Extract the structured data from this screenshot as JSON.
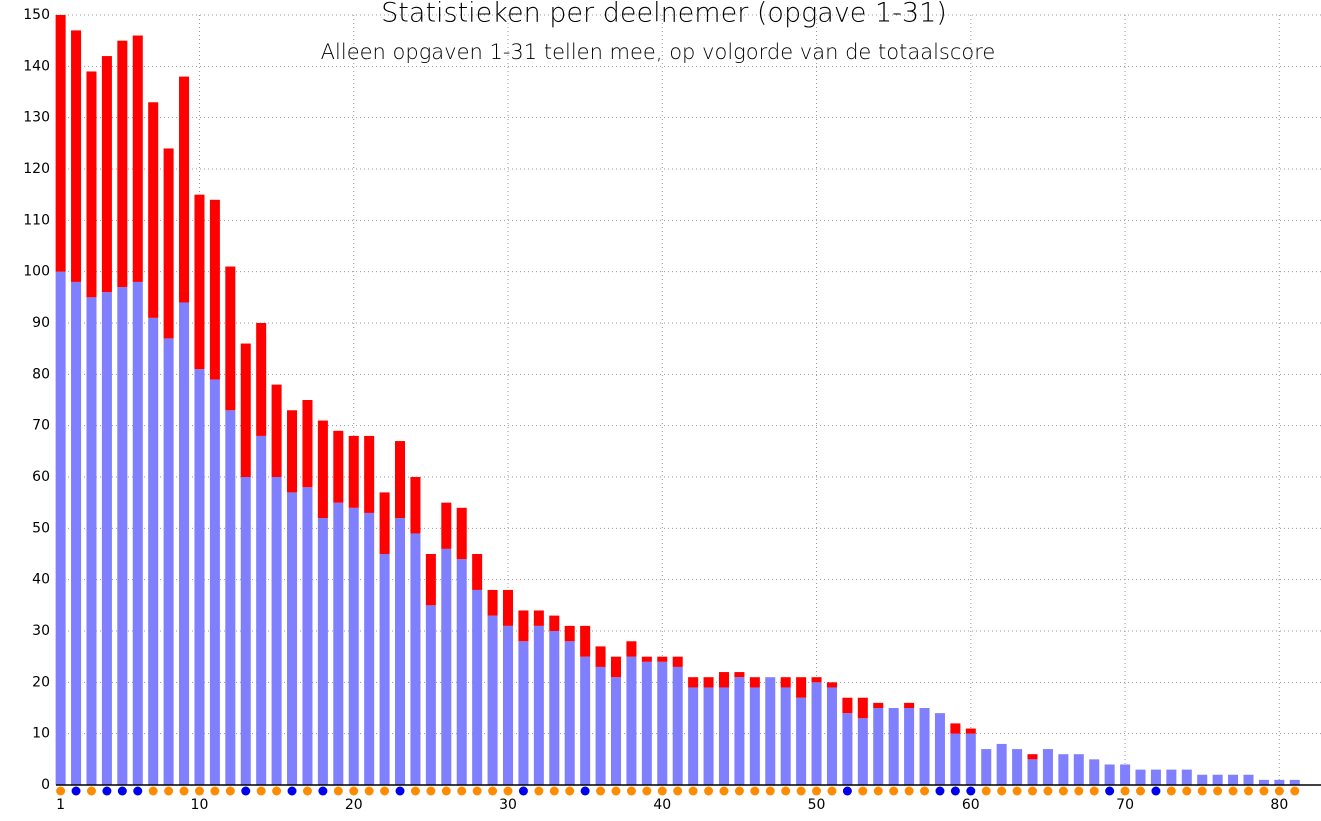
{
  "chart_data": {
    "type": "stacked_bar",
    "title": "Statistieken per deelnemer (opgave 1-31)",
    "subtitle": "Alleen opgaven 1-31 tellen mee, op volgorde van de totaalscore",
    "x": [
      1,
      2,
      3,
      4,
      5,
      6,
      7,
      8,
      9,
      10,
      11,
      12,
      13,
      14,
      15,
      16,
      17,
      18,
      19,
      20,
      21,
      22,
      23,
      24,
      25,
      26,
      27,
      28,
      29,
      30,
      31,
      32,
      33,
      34,
      35,
      36,
      37,
      38,
      39,
      40,
      41,
      42,
      43,
      44,
      45,
      46,
      47,
      48,
      49,
      50,
      51,
      52,
      53,
      54,
      55,
      56,
      57,
      58,
      59,
      60,
      61,
      62,
      63,
      64,
      65,
      66,
      67,
      68,
      69,
      70,
      71,
      72,
      73,
      74,
      75,
      76,
      77,
      78,
      79,
      80,
      81
    ],
    "series": [
      {
        "color": "#8080ff",
        "values": [
          100,
          98,
          95,
          96,
          97,
          98,
          91,
          87,
          94,
          81,
          79,
          73,
          60,
          68,
          60,
          57,
          58,
          52,
          55,
          54,
          53,
          45,
          52,
          49,
          35,
          46,
          44,
          38,
          33,
          31,
          28,
          31,
          30,
          28,
          25,
          23,
          21,
          25,
          24,
          24,
          23,
          19,
          19,
          19,
          21,
          19,
          21,
          19,
          17,
          20,
          19,
          14,
          13,
          15,
          15,
          15,
          15,
          14,
          10,
          10,
          7,
          8,
          7,
          5,
          7,
          6,
          6,
          5,
          4,
          4,
          3,
          3,
          3,
          3,
          2,
          2,
          2,
          2,
          1,
          1,
          1
        ]
      },
      {
        "color": "#ff0000",
        "values": [
          50,
          49,
          44,
          46,
          48,
          48,
          42,
          37,
          44,
          34,
          35,
          28,
          26,
          22,
          18,
          16,
          17,
          19,
          14,
          14,
          15,
          12,
          15,
          11,
          10,
          9,
          10,
          7,
          5,
          7,
          6,
          3,
          3,
          3,
          6,
          4,
          4,
          3,
          1,
          1,
          2,
          2,
          2,
          3,
          1,
          2,
          0,
          2,
          4,
          1,
          1,
          3,
          4,
          1,
          0,
          1,
          0,
          0,
          2,
          1,
          0,
          0,
          0,
          1,
          0,
          0,
          0,
          0,
          0,
          0,
          0,
          0,
          0,
          0,
          0,
          0,
          0,
          0,
          0,
          0,
          0
        ]
      }
    ],
    "dot_colors": [
      "#ff8c00",
      "#0000ee",
      "#ff8c00",
      "#0000ee",
      "#0000ee",
      "#0000ee",
      "#ff8c00",
      "#ff8c00",
      "#ff8c00",
      "#ff8c00",
      "#ff8c00",
      "#ff8c00",
      "#0000ee",
      "#ff8c00",
      "#ff8c00",
      "#0000ee",
      "#ff8c00",
      "#0000ee",
      "#ff8c00",
      "#ff8c00",
      "#ff8c00",
      "#ff8c00",
      "#0000ee",
      "#ff8c00",
      "#ff8c00",
      "#ff8c00",
      "#ff8c00",
      "#ff8c00",
      "#ff8c00",
      "#ff8c00",
      "#0000ee",
      "#ff8c00",
      "#ff8c00",
      "#ff8c00",
      "#0000ee",
      "#ff8c00",
      "#ff8c00",
      "#ff8c00",
      "#ff8c00",
      "#ff8c00",
      "#ff8c00",
      "#ff8c00",
      "#ff8c00",
      "#ff8c00",
      "#ff8c00",
      "#ff8c00",
      "#ff8c00",
      "#ff8c00",
      "#ff8c00",
      "#ff8c00",
      "#ff8c00",
      "#0000ee",
      "#ff8c00",
      "#ff8c00",
      "#ff8c00",
      "#ff8c00",
      "#ff8c00",
      "#0000ee",
      "#0000ee",
      "#0000ee",
      "#ff8c00",
      "#ff8c00",
      "#ff8c00",
      "#ff8c00",
      "#ff8c00",
      "#ff8c00",
      "#ff8c00",
      "#ff8c00",
      "#0000ee",
      "#ff8c00",
      "#ff8c00",
      "#0000ee",
      "#ff8c00",
      "#ff8c00",
      "#ff8c00",
      "#ff8c00",
      "#ff8c00",
      "#ff8c00",
      "#ff8c00",
      "#ff8c00",
      "#ff8c00"
    ],
    "xlim": [
      0.7,
      82.7
    ],
    "xticks": [
      1,
      10,
      20,
      30,
      40,
      50,
      60,
      70,
      80
    ],
    "ylim": [
      0,
      150
    ],
    "yticks": [
      0,
      10,
      20,
      30,
      40,
      50,
      60,
      70,
      80,
      90,
      100,
      110,
      120,
      130,
      140,
      150
    ],
    "grid": true
  }
}
